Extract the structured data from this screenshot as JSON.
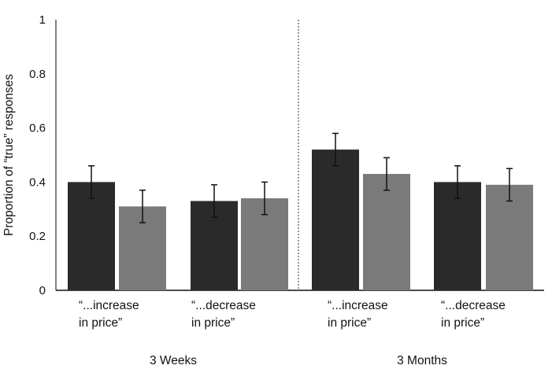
{
  "chart_data": {
    "type": "bar",
    "title": "",
    "ylabel": "Proportion of “true” responses",
    "xlabel": "",
    "ylim": [
      0,
      1
    ],
    "yticks": [
      "0",
      "0.2",
      "0.4",
      "0.6",
      "0.8",
      "1"
    ],
    "grid": false,
    "groups": [
      {
        "name": "3 Weeks",
        "categories": [
          {
            "line1": "“...increase",
            "line2": "in price”",
            "values": [
              0.4,
              0.31
            ],
            "errors": [
              0.06,
              0.06
            ]
          },
          {
            "line1": "“...decrease",
            "line2": "in price”",
            "values": [
              0.33,
              0.34
            ],
            "errors": [
              0.06,
              0.06
            ]
          }
        ]
      },
      {
        "name": "3 Months",
        "categories": [
          {
            "line1": "“...increase",
            "line2": "in price”",
            "values": [
              0.52,
              0.43
            ],
            "errors": [
              0.06,
              0.06
            ]
          },
          {
            "line1": "“...decrease",
            "line2": "in price”",
            "values": [
              0.4,
              0.39
            ],
            "errors": [
              0.06,
              0.06
            ]
          }
        ]
      }
    ],
    "series_colors": [
      "#2a2a2a",
      "#7a7a7a"
    ]
  }
}
